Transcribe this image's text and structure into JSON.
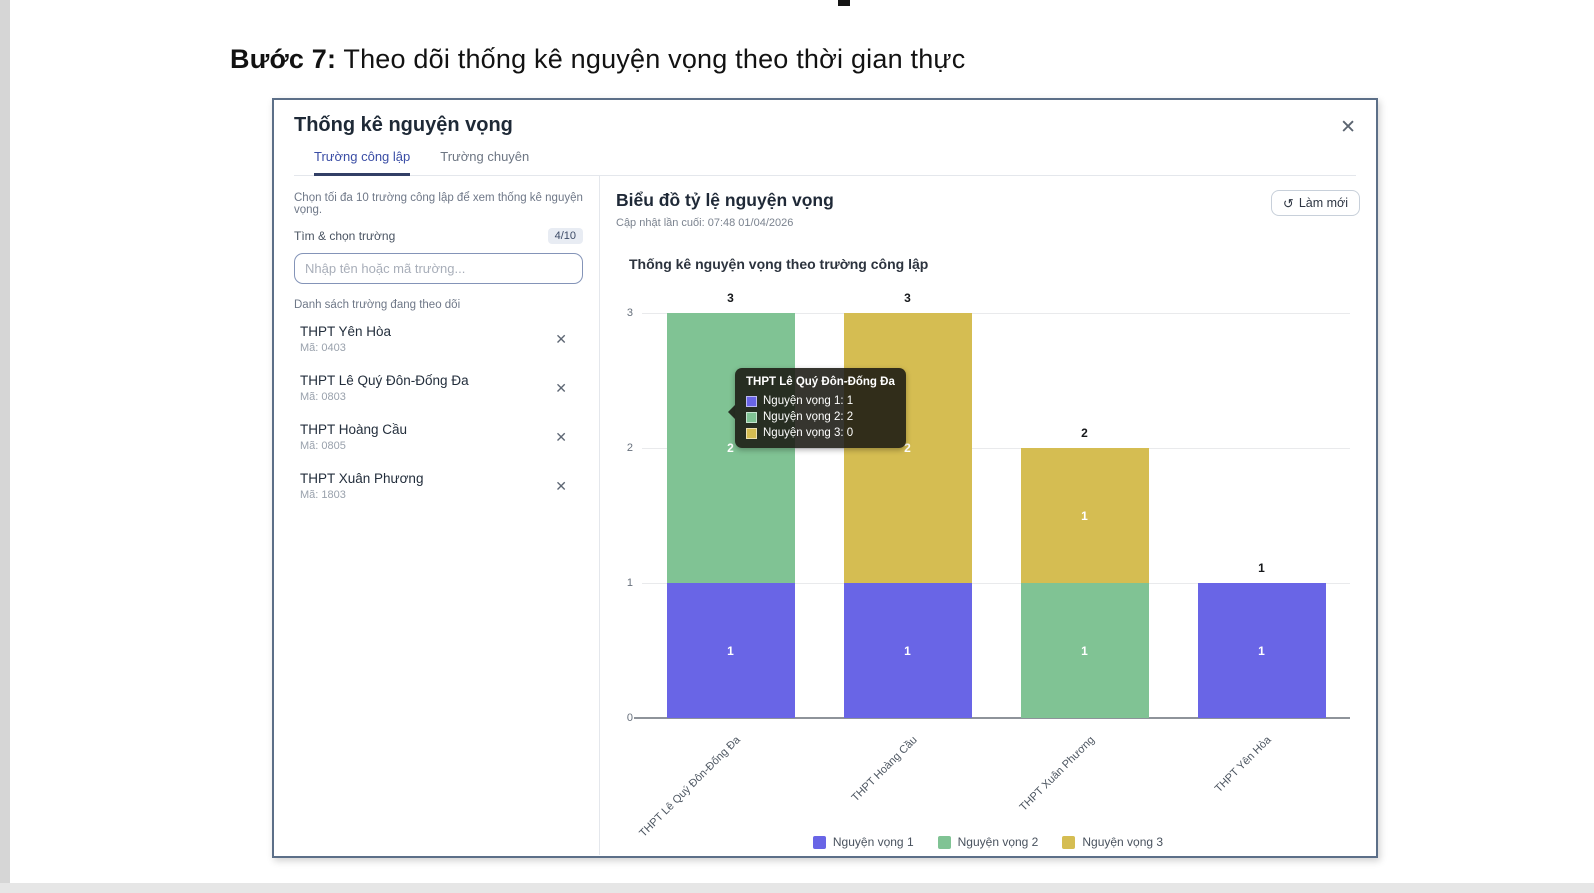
{
  "page": {
    "heading_bold": "Bước 7:",
    "heading_rest": " Theo dõi thống kê nguyện vọng theo thời gian thực"
  },
  "modal": {
    "title": "Thống kê nguyện vọng",
    "close_label": "✕",
    "tabs": [
      {
        "label": "Trường công lập",
        "active": true
      },
      {
        "label": "Trường chuyên",
        "active": false
      }
    ],
    "sidebar": {
      "instruction": "Chọn tối đa 10 trường công lập để xem thống kê nguyện vọng.",
      "search_label": "Tìm & chọn trường",
      "count_badge": "4/10",
      "search_placeholder": "Nhập tên hoặc mã trường...",
      "list_label": "Danh sách trường đang theo dõi",
      "remove_label": "✕",
      "schools": [
        {
          "name": "THPT Yên Hòa",
          "code": "Mã: 0403"
        },
        {
          "name": "THPT Lê Quý Đôn-Đống Đa",
          "code": "Mã: 0803"
        },
        {
          "name": "THPT Hoàng Cầu",
          "code": "Mã: 0805"
        },
        {
          "name": "THPT Xuân Phương",
          "code": "Mã: 1803"
        }
      ]
    },
    "chart_panel": {
      "title": "Biểu đồ tỷ lệ nguyện vọng",
      "updated": "Cập nhật lần cuối: 07:48 01/04/2026",
      "refresh_label": "Làm mới",
      "refresh_icon": "↺"
    }
  },
  "chart_data": {
    "type": "bar",
    "stacked": true,
    "title": "Thống kê nguyện vọng theo trường công lập",
    "categories": [
      "THPT Lê Quý Đôn-Đống Đa",
      "THPT Hoàng Cầu",
      "THPT Xuân Phương",
      "THPT Yên Hòa"
    ],
    "series": [
      {
        "name": "Nguyện vọng 1",
        "color": "#6965e6",
        "values": [
          1,
          1,
          0,
          1
        ]
      },
      {
        "name": "Nguyện vọng 2",
        "color": "#80c394",
        "values": [
          2,
          0,
          1,
          0
        ]
      },
      {
        "name": "Nguyện vọng 3",
        "color": "#d5bd52",
        "values": [
          0,
          2,
          1,
          0
        ]
      }
    ],
    "totals": [
      3,
      3,
      2,
      1
    ],
    "ylim": [
      0,
      3
    ],
    "yticks": [
      0,
      1,
      2,
      3
    ],
    "grid": true,
    "legend_position": "bottom",
    "tooltip": {
      "category": "THPT Lê Quý Đôn-Đống Đa",
      "rows": [
        {
          "label": "Nguyện vọng 1: 1",
          "color": "#6965e6"
        },
        {
          "label": "Nguyện vọng 2: 2",
          "color": "#80c394"
        },
        {
          "label": "Nguyện vọng 3: 0",
          "color": "#d5bd52"
        }
      ]
    }
  }
}
